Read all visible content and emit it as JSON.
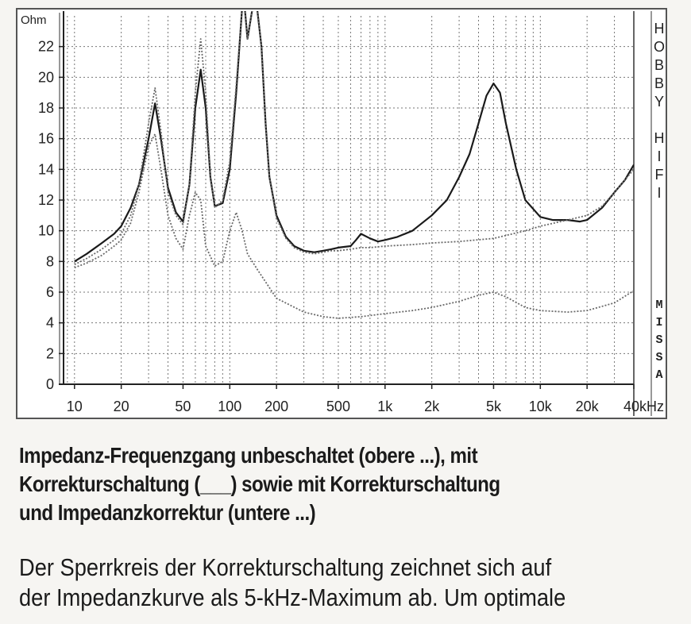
{
  "chart_data": {
    "type": "line",
    "xscale": "log",
    "xlim": [
      8.5,
      40000
    ],
    "ylim": [
      0,
      24
    ],
    "ylabel": "Ohm",
    "xunit": "kHz",
    "yticks": [
      0,
      2,
      4,
      6,
      8,
      10,
      12,
      14,
      16,
      18,
      20,
      22
    ],
    "xticks": [
      {
        "v": 10,
        "label": "10"
      },
      {
        "v": 20,
        "label": "20"
      },
      {
        "v": 50,
        "label": "50"
      },
      {
        "v": 100,
        "label": "100"
      },
      {
        "v": 200,
        "label": "200"
      },
      {
        "v": 500,
        "label": "500"
      },
      {
        "v": 1000,
        "label": "1k"
      },
      {
        "v": 2000,
        "label": "2k"
      },
      {
        "v": 5000,
        "label": "5k"
      },
      {
        "v": 10000,
        "label": "10k"
      },
      {
        "v": 20000,
        "label": "20k"
      },
      {
        "v": 40000,
        "label": "40kHz"
      }
    ],
    "grid": true,
    "side_labels": {
      "top": [
        "H",
        "O",
        "B",
        "B",
        "Y",
        "",
        "H",
        "I",
        "F",
        "I"
      ],
      "bottom": [
        "M",
        "I",
        "S",
        "S",
        "A"
      ]
    },
    "series": [
      {
        "style": "solid",
        "x": [
          10,
          12,
          15,
          18,
          20,
          23,
          26,
          30,
          33,
          36,
          40,
          45,
          50,
          55,
          60,
          65,
          70,
          75,
          80,
          90,
          100,
          110,
          120,
          125,
          130,
          140,
          150,
          160,
          170,
          180,
          200,
          230,
          260,
          300,
          350,
          400,
          450,
          500,
          600,
          650,
          700,
          800,
          900,
          1000,
          1200,
          1500,
          2000,
          2500,
          3000,
          3500,
          4000,
          4500,
          5000,
          5500,
          6000,
          7000,
          8000,
          10000,
          12000,
          15000,
          18000,
          20000,
          25000,
          30000,
          35000,
          40000
        ],
        "y": [
          8.0,
          8.5,
          9.2,
          9.8,
          10.3,
          11.5,
          13.0,
          16.0,
          18.3,
          16.0,
          12.8,
          11.2,
          10.6,
          13.0,
          18.0,
          20.5,
          18.0,
          13.5,
          11.6,
          11.8,
          14.0,
          19.0,
          24.5,
          24.5,
          22.5,
          24.5,
          24.5,
          22.0,
          17.0,
          13.5,
          11.0,
          9.6,
          9.0,
          8.7,
          8.6,
          8.7,
          8.8,
          8.9,
          9.0,
          9.4,
          9.8,
          9.5,
          9.3,
          9.4,
          9.6,
          10.0,
          11.0,
          12.0,
          13.5,
          15.0,
          17.0,
          18.8,
          19.6,
          19.0,
          17.0,
          14.0,
          12.0,
          10.9,
          10.7,
          10.7,
          10.6,
          10.7,
          11.5,
          12.5,
          13.3,
          14.3
        ]
      },
      {
        "style": "dotted",
        "x": [
          10,
          12,
          15,
          18,
          20,
          23,
          26,
          30,
          33,
          36,
          40,
          45,
          50,
          55,
          60,
          65,
          70,
          75,
          80,
          90,
          100,
          110,
          120,
          125,
          130,
          140,
          150,
          160,
          170,
          180,
          200,
          230,
          260,
          300,
          350,
          400,
          450,
          500,
          600,
          700,
          800,
          1000,
          1500,
          2000,
          3000,
          5000,
          8000,
          10000,
          15000,
          20000,
          25000,
          30000,
          40000
        ],
        "y": [
          7.8,
          8.2,
          8.8,
          9.4,
          9.8,
          11.0,
          13.0,
          17.0,
          19.3,
          16.5,
          12.5,
          11.0,
          10.4,
          13.0,
          19.0,
          22.5,
          19.0,
          13.5,
          11.5,
          12.0,
          14.5,
          19.5,
          24.5,
          24.5,
          22.5,
          24.5,
          24.5,
          22.0,
          17.0,
          13.5,
          10.8,
          9.5,
          8.9,
          8.6,
          8.5,
          8.6,
          8.7,
          8.7,
          8.8,
          8.9,
          8.9,
          9.0,
          9.1,
          9.2,
          9.3,
          9.5,
          10.0,
          10.3,
          10.7,
          11.0,
          11.6,
          12.5,
          14.0
        ]
      },
      {
        "style": "dotted",
        "x": [
          10,
          12,
          15,
          18,
          20,
          23,
          26,
          30,
          33,
          36,
          40,
          45,
          50,
          55,
          60,
          65,
          70,
          80,
          90,
          100,
          110,
          120,
          130,
          150,
          200,
          300,
          400,
          500,
          700,
          1000,
          1500,
          2000,
          3000,
          4000,
          5000,
          6000,
          8000,
          10000,
          15000,
          20000,
          30000,
          40000
        ],
        "y": [
          7.6,
          7.9,
          8.4,
          9.0,
          9.4,
          10.5,
          12.5,
          15.5,
          16.3,
          14.0,
          11.0,
          9.5,
          8.8,
          11.0,
          12.5,
          12.0,
          9.0,
          7.7,
          8.0,
          10.0,
          11.2,
          10.0,
          8.5,
          7.5,
          5.6,
          4.7,
          4.4,
          4.3,
          4.4,
          4.6,
          4.8,
          5.0,
          5.4,
          5.8,
          6.0,
          5.7,
          5.0,
          4.8,
          4.7,
          4.8,
          5.3,
          6.1
        ]
      }
    ]
  },
  "caption": {
    "title_lines": [
      "Impedanz-Frequenzgang unbeschaltet (obere ...), mit",
      "Korrekturschaltung (___) sowie mit Korrekturschaltung",
      "und Impedanzkorrektur (untere ...)"
    ],
    "body_lines": [
      "Der Sperrkreis der Korrekturschaltung zeichnet sich auf",
      "der Impedanzkurve als 5-kHz-Maximum ab. Um optimale"
    ]
  }
}
